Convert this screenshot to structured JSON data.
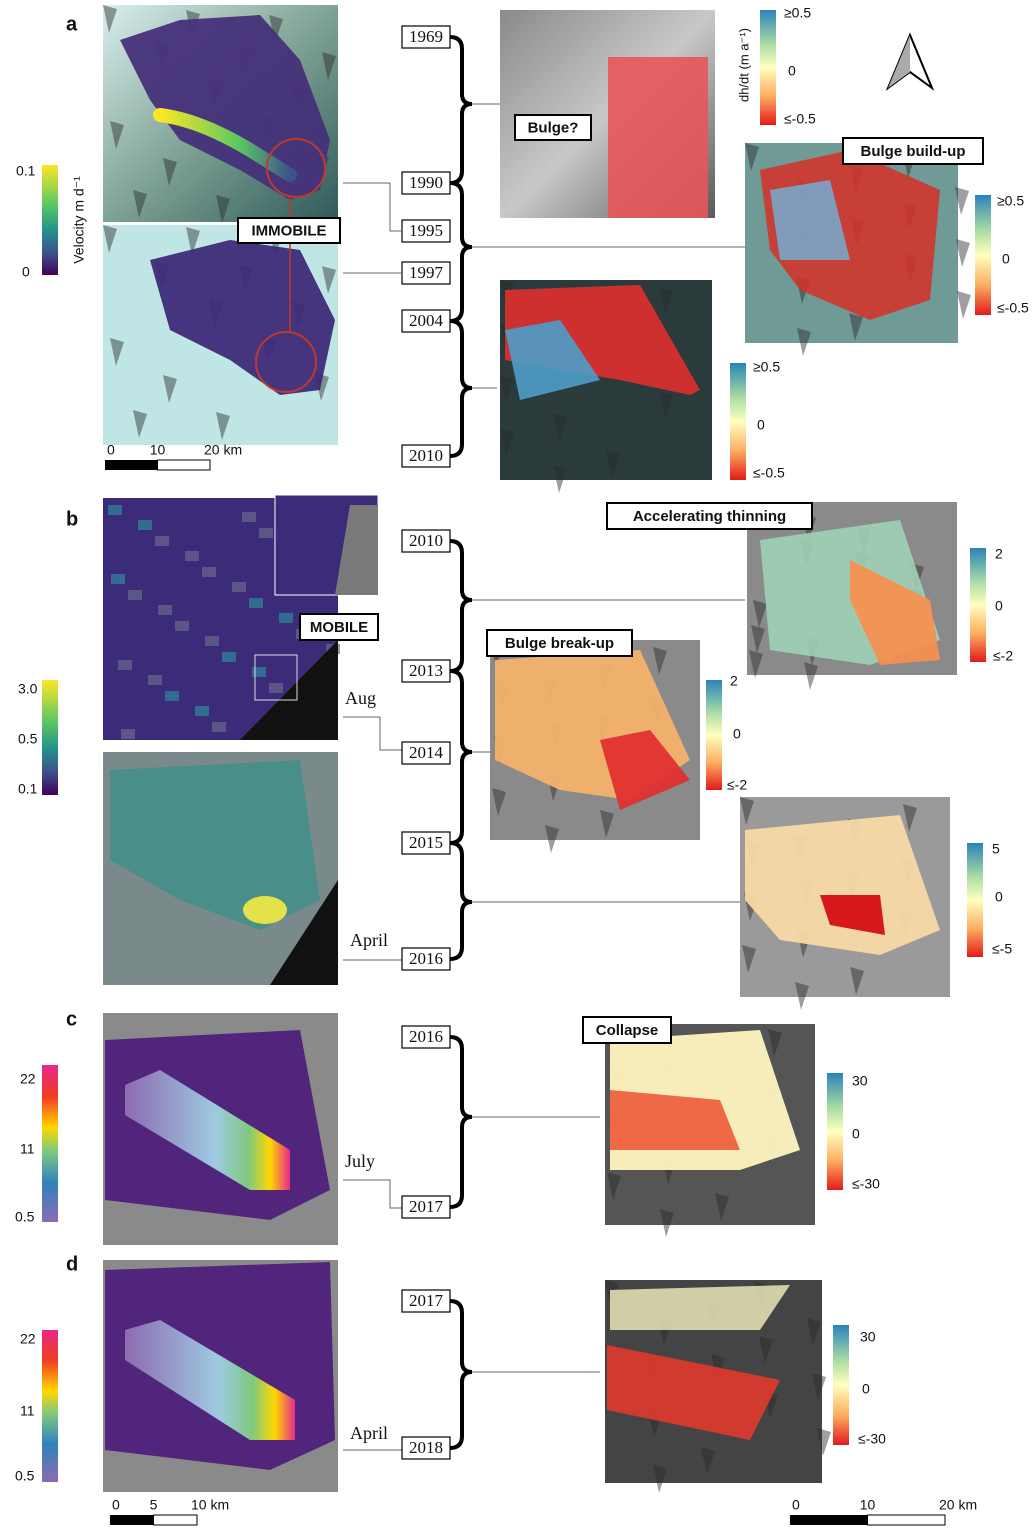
{
  "panels": [
    {
      "label": "a",
      "velocity_colorbar": {
        "title": "Velocity m d⁻¹",
        "ticks": [
          "0.1",
          "0"
        ]
      },
      "status": "IMMOBILE",
      "scale_bar": [
        "0",
        "10",
        "20 km"
      ],
      "timeline": [
        "1969",
        "1990",
        "1995",
        "1997",
        "2004",
        "2010"
      ],
      "dhdt_maps": [
        {
          "annotation": "Bulge?",
          "colorbar": {
            "title": "dh/dt (m a⁻¹)",
            "ticks": [
              "≥0.5",
              "0",
              "≤-0.5"
            ]
          }
        },
        {
          "annotation": "Bulge build-up",
          "colorbar": {
            "ticks": [
              "≥0.5",
              "0",
              "≤-0.5"
            ]
          }
        },
        {
          "colorbar": {
            "ticks": [
              "≥0.5",
              "0",
              "≤-0.5"
            ]
          }
        }
      ]
    },
    {
      "label": "b",
      "velocity_colorbar": {
        "ticks": [
          "3.0",
          "0.5",
          "0.1"
        ]
      },
      "status": "MOBILE",
      "acquisition_months": [
        "Aug",
        "April"
      ],
      "timeline": [
        "2010",
        "2013",
        "2014",
        "2015",
        "2016"
      ],
      "dhdt_maps": [
        {
          "annotation": "Accelerating thinning",
          "colorbar": {
            "ticks": [
              "2",
              "0",
              "≤-2"
            ]
          }
        },
        {
          "annotation": "Bulge break-up",
          "colorbar": {
            "ticks": [
              "2",
              "0",
              "≤-2"
            ]
          }
        },
        {
          "colorbar": {
            "ticks": [
              "5",
              "0",
              "≤-5"
            ]
          }
        }
      ]
    },
    {
      "label": "c",
      "velocity_colorbar": {
        "ticks": [
          "22",
          "11",
          "0.5"
        ]
      },
      "acquisition_months": [
        "July"
      ],
      "timeline": [
        "2016",
        "2017"
      ],
      "dhdt_maps": [
        {
          "annotation": "Collapse",
          "colorbar": {
            "ticks": [
              "30",
              "0",
              "≤-30"
            ]
          }
        }
      ]
    },
    {
      "label": "d",
      "velocity_colorbar": {
        "ticks": [
          "22",
          "11",
          "0.5"
        ]
      },
      "acquisition_months": [
        "April"
      ],
      "timeline": [
        "2017",
        "2018"
      ],
      "dhdt_maps": [
        {
          "colorbar": {
            "ticks": [
              "30",
              "0",
              "≤-30"
            ]
          }
        }
      ],
      "scale_bar": [
        "0",
        "5",
        "10 km"
      ],
      "dhdt_scale_bar": [
        "0",
        "10",
        "20 km"
      ]
    }
  ]
}
